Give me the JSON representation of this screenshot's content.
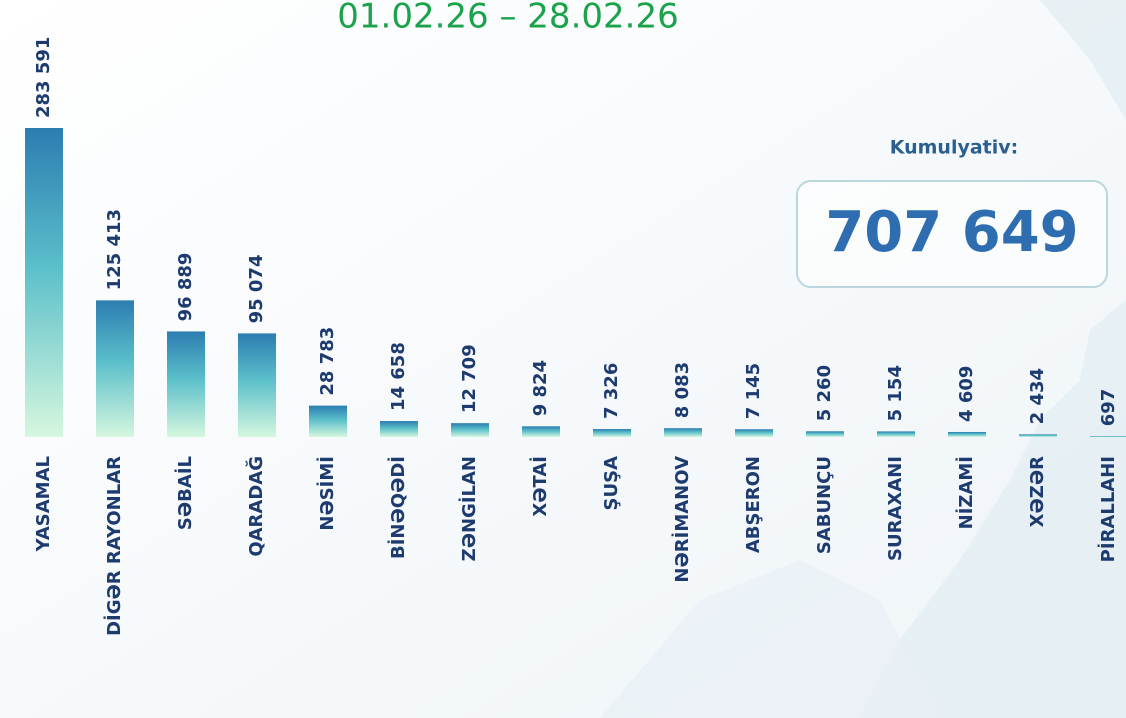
{
  "chart_data": {
    "type": "bar",
    "title": "01.02.26 – 28.02.26",
    "annotations": {
      "label": "Kumulyativ:",
      "total": "707 649"
    },
    "categories": [
      "YASAMAL",
      "DİGƏR RAYONLAR",
      "SƏBAİL",
      "QARADAĞ",
      "NƏSİMİ",
      "BİNƏQƏDİ",
      "ZƏNGİLAN",
      "XƏTAİ",
      "ŞUŞA",
      "NƏRİMANOV",
      "ABŞERON",
      "SABUNÇU",
      "SURAXANI",
      "NİZAMİ",
      "XƏZƏR",
      "PİRALLAHI"
    ],
    "values": [
      283591,
      125413,
      96889,
      95074,
      28783,
      14658,
      12709,
      9824,
      7326,
      8083,
      7145,
      5260,
      5154,
      4609,
      2434,
      697
    ],
    "value_labels": [
      "283 591",
      "125 413",
      "96 889",
      "95 074",
      "28 783",
      "14 658",
      "12 709",
      "9 824",
      "7 326",
      "8 083",
      "7 145",
      "5 260",
      "5 154",
      "4 609",
      "2 434",
      "697"
    ],
    "colors": [
      "#2c7db1",
      "#d6f7df"
    ],
    "ylim": [
      0,
      283591
    ]
  }
}
